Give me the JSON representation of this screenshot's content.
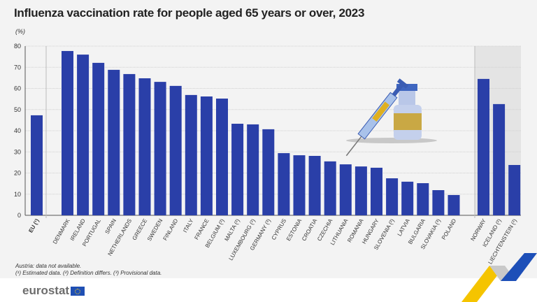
{
  "title": "Influenza vaccination rate for people aged 65 years or over, 2023",
  "unit": "(%)",
  "notes": [
    "Austria: data not available.",
    "(¹) Estimated data. (²) Definition differs. (³) Provisional data."
  ],
  "logo": "eurostat",
  "colors": {
    "bar": "#2a3fa8",
    "panel": "#f3f3f3",
    "efta_shade": "#e4e4e4"
  },
  "chart_data": {
    "type": "bar",
    "title": "Influenza vaccination rate for people aged 65 years or over, 2023",
    "ylabel": "(%)",
    "ylim": [
      0,
      80
    ],
    "yticks": [
      0,
      10,
      20,
      30,
      40,
      50,
      60,
      70,
      80
    ],
    "grid": true,
    "categories": [
      "EU (¹)",
      "Denmark",
      "Ireland",
      "Portugal",
      "Spain",
      "Netherlands",
      "Greece",
      "Sweden",
      "Finland",
      "Italy",
      "France",
      "Belgium (²)",
      "Malta (²)",
      "Luxembourg (²)",
      "Germany (³)",
      "Cyprus",
      "Estonia",
      "Croatia",
      "Czechia",
      "Lithuania",
      "Romania",
      "Hungary",
      "Slovenia (²)",
      "Latvia",
      "Bulgaria",
      "Slovakia (³)",
      "Poland",
      "Norway",
      "Iceland (²)",
      "Liechtenstein (²)"
    ],
    "values": [
      47.3,
      77.7,
      76.0,
      72.1,
      68.8,
      66.8,
      64.8,
      63.1,
      61.2,
      56.9,
      56.2,
      55.2,
      43.3,
      43.0,
      40.7,
      29.4,
      28.4,
      28.1,
      25.5,
      24.1,
      23.1,
      22.5,
      17.5,
      15.9,
      15.2,
      11.9,
      9.6,
      64.5,
      52.6,
      23.8
    ],
    "groups": [
      {
        "from": "EU (¹)",
        "to": "EU (¹)"
      },
      {
        "from": "Denmark",
        "to": "Poland"
      },
      {
        "from": "Norway",
        "to": "Liechtenstein (²)",
        "shaded": true
      }
    ]
  }
}
